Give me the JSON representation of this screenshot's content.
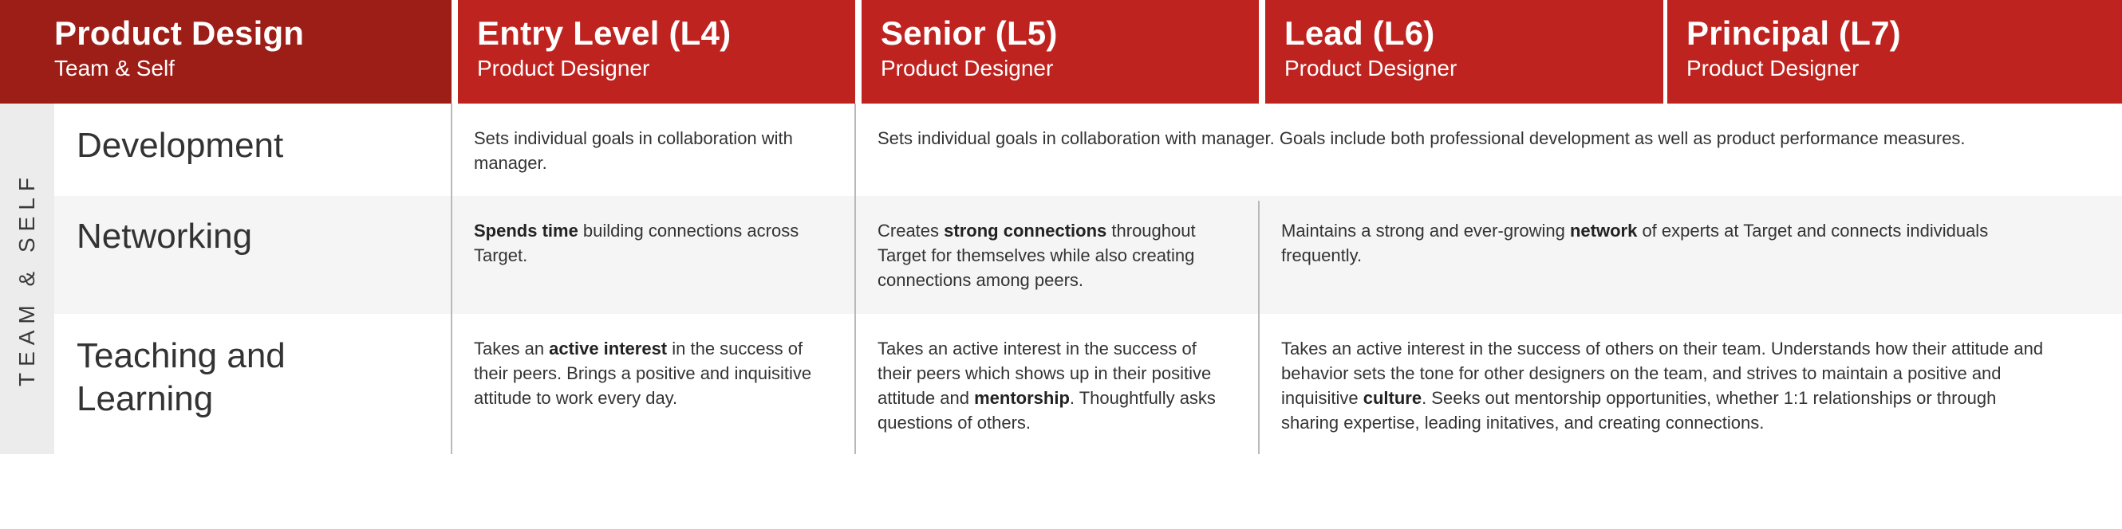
{
  "header": {
    "main_title": "Product Design",
    "main_subtitle": "Team & Self",
    "columns": [
      {
        "title": "Entry Level (L4)",
        "subtitle": "Product Designer"
      },
      {
        "title": "Senior (L5)",
        "subtitle": "Product Designer"
      },
      {
        "title": "Lead (L6)",
        "subtitle": "Product Designer"
      },
      {
        "title": "Principal (L7)",
        "subtitle": "Product Designer"
      }
    ]
  },
  "side_label": "TEAM & SELF",
  "rows": [
    {
      "title": "Development",
      "entry": {
        "text": "Sets individual goals in collaboration with manager."
      },
      "senior_to_principal": {
        "text": "Sets individual goals in collaboration with manager. Goals include both professional development as well as product performance measures."
      }
    },
    {
      "title": "Networking",
      "entry": {
        "bold": "Spends time",
        "after": " building connections  across Target."
      },
      "senior": {
        "before": "Creates ",
        "bold": "strong connections",
        "after": " throughout Target for themselves while also creating connections among peers."
      },
      "lead_principal": {
        "before": "Maintains a strong and ever-growing ",
        "bold": "network",
        "after": " of experts at Target and connects individuals frequently."
      }
    },
    {
      "title_line1": "Teaching and",
      "title_line2": "Learning",
      "entry": {
        "before": "Takes an ",
        "bold": "active interest",
        "after": " in the success of their peers. Brings a positive and inquisitive attitude to work every day."
      },
      "senior": {
        "before": "Takes an active interest in the success of their peers which shows up in their positive attitude and ",
        "bold": "mentorship",
        "after": ". Thoughtfully asks questions of others."
      },
      "lead_principal": {
        "before": "Takes an active interest in the success of others on their team. Understands how their attitude and behavior sets the tone for other designers on the team, and strives to maintain a positive and inquisitive ",
        "bold": "culture",
        "after": ". Seeks out mentorship opportunities, whether 1:1 relationships or through sharing expertise, leading initatives, and creating connections."
      }
    }
  ],
  "colors": {
    "header_red": "#bf231f",
    "header_dark_red": "#9d1d17",
    "stripe_gray": "#f5f5f5",
    "side_gray": "#ececec"
  }
}
